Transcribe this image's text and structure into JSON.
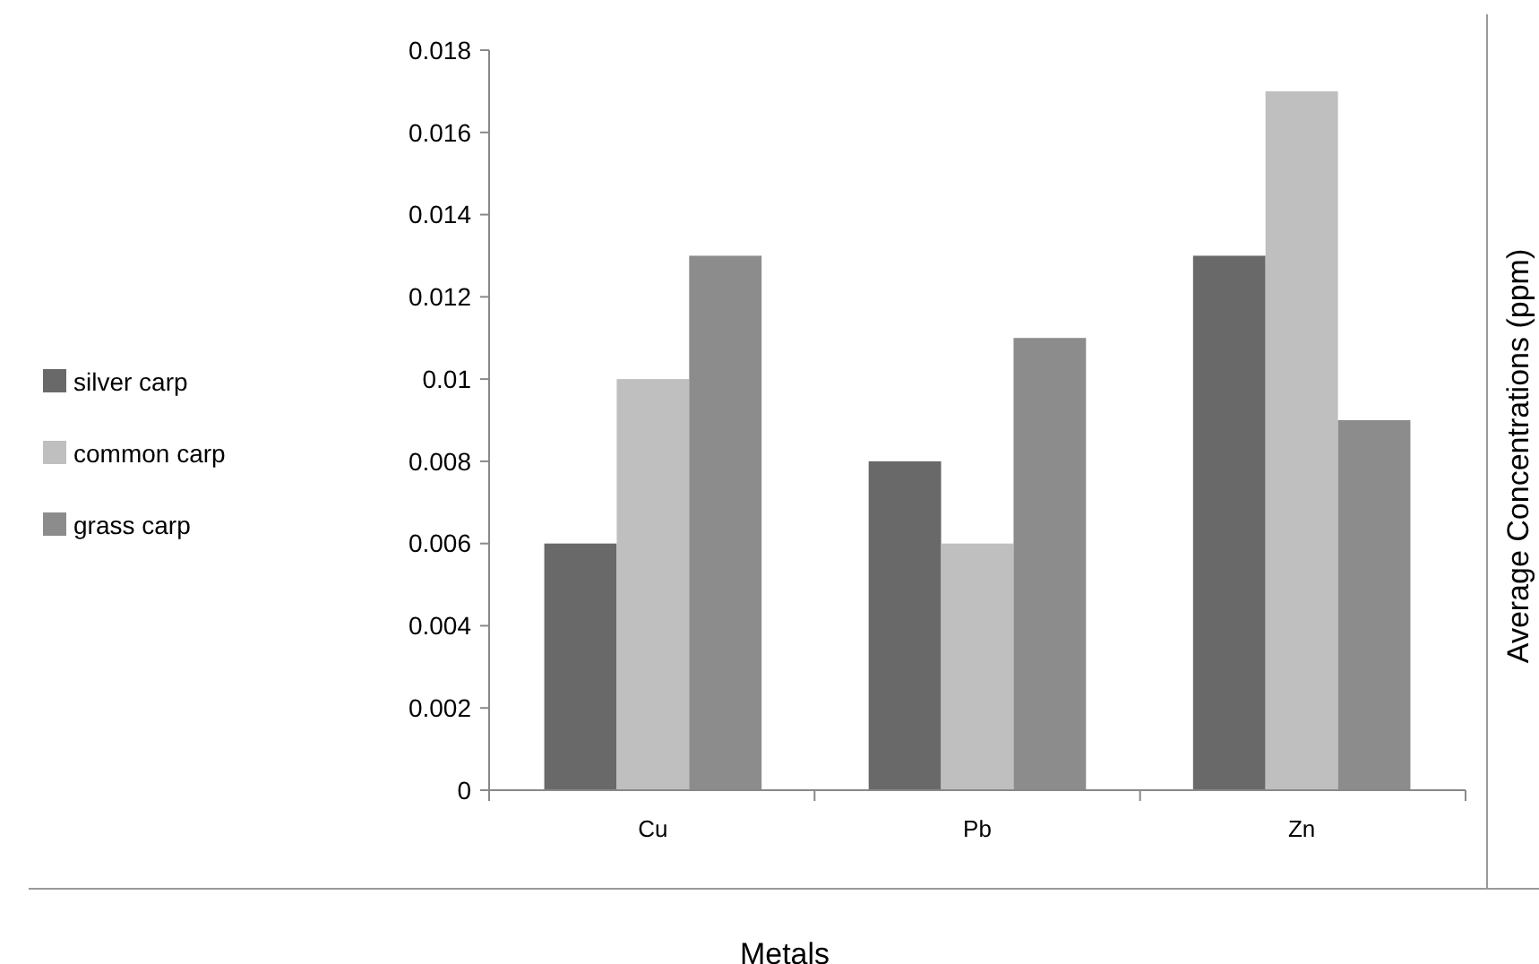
{
  "chart_data": {
    "type": "bar",
    "xlabel": "Metals",
    "ylabel": "Average Concentrations (ppm)",
    "categories": [
      "Cu",
      "Pb",
      "Zn"
    ],
    "series": [
      {
        "name": "silver carp",
        "color": "#696969",
        "values": [
          0.006,
          0.008,
          0.013
        ]
      },
      {
        "name": "common carp",
        "color": "#bfbfbf",
        "values": [
          0.01,
          0.006,
          0.017
        ]
      },
      {
        "name": "grass carp",
        "color": "#8c8c8c",
        "values": [
          0.013,
          0.011,
          0.009
        ]
      }
    ],
    "ylim": [
      0,
      0.018
    ],
    "yticks": [
      0,
      0.002,
      0.004,
      0.006,
      0.008,
      {
        "value": 0.01,
        "label": "0.01"
      },
      0.012,
      0.014,
      0.016,
      0.018
    ],
    "grid": false,
    "legend": "left"
  }
}
